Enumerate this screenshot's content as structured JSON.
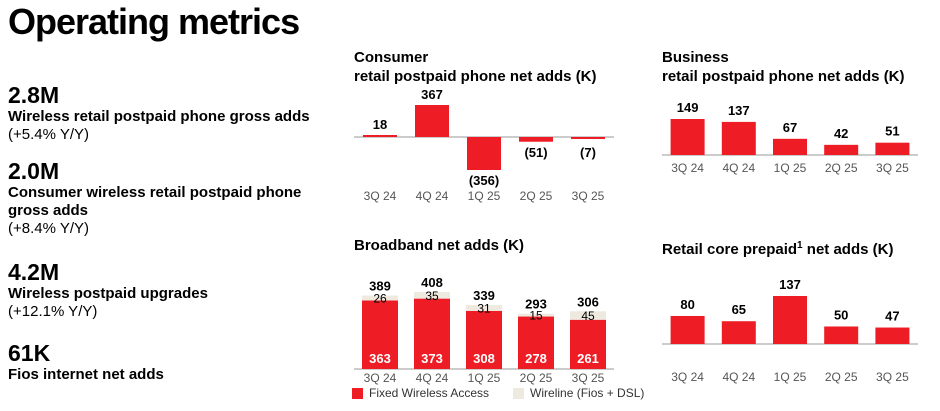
{
  "page_title": "Operating metrics",
  "metrics": [
    {
      "value": "2.8M",
      "desc": "Wireless retail postpaid phone gross adds",
      "change": "(+5.4% Y/Y)"
    },
    {
      "value": "2.0M",
      "desc": "Consumer wireless retail postpaid phone gross adds",
      "change": "(+8.4% Y/Y)"
    },
    {
      "value": "4.2M",
      "desc": "Wireless postpaid upgrades",
      "change": "(+12.1% Y/Y)"
    },
    {
      "value": "61K",
      "desc": "Fios internet net adds",
      "change": ""
    }
  ],
  "colors": {
    "red": "#ee1c25",
    "beige": "#efeae0",
    "axis": "#999999"
  },
  "chart_data": [
    {
      "id": "consumer",
      "type": "bar",
      "title_line1": "Consumer",
      "title_line2": "retail postpaid phone net adds (K)",
      "categories": [
        "3Q 24",
        "4Q 24",
        "1Q 25",
        "2Q 25",
        "3Q 25"
      ],
      "values": [
        18,
        367,
        -356,
        -51,
        -7
      ],
      "labels": [
        "18",
        "367",
        "(356)",
        "(51)",
        "(7)"
      ],
      "ylim": [
        -356,
        367
      ]
    },
    {
      "id": "business",
      "type": "bar",
      "title_line1": "Business",
      "title_line2": "retail postpaid phone net adds (K)",
      "categories": [
        "3Q 24",
        "4Q 24",
        "1Q 25",
        "2Q 25",
        "3Q 25"
      ],
      "values": [
        149,
        137,
        67,
        42,
        51
      ],
      "labels": [
        "149",
        "137",
        "67",
        "42",
        "51"
      ],
      "ylim": [
        0,
        149
      ]
    },
    {
      "id": "broadband",
      "type": "bar",
      "stacked": true,
      "title": "Broadband net adds (K)",
      "categories": [
        "3Q 24",
        "4Q 24",
        "1Q 25",
        "2Q 25",
        "3Q 25"
      ],
      "totals": [
        389,
        408,
        339,
        293,
        306
      ],
      "series": [
        {
          "name": "Fixed Wireless Access",
          "values": [
            363,
            373,
            308,
            278,
            261
          ]
        },
        {
          "name": "Wireline (Fios + DSL)",
          "values": [
            26,
            35,
            31,
            15,
            45
          ]
        }
      ],
      "ylim": [
        0,
        408
      ]
    },
    {
      "id": "prepaid",
      "type": "bar",
      "title_main": "Retail core prepaid",
      "title_sup": "1",
      "title_tail": " net adds (K)",
      "categories": [
        "3Q 24",
        "4Q 24",
        "1Q 25",
        "2Q 25",
        "3Q 25"
      ],
      "values": [
        80,
        65,
        137,
        50,
        47
      ],
      "labels": [
        "80",
        "65",
        "137",
        "50",
        "47"
      ],
      "ylim": [
        0,
        137
      ]
    }
  ]
}
